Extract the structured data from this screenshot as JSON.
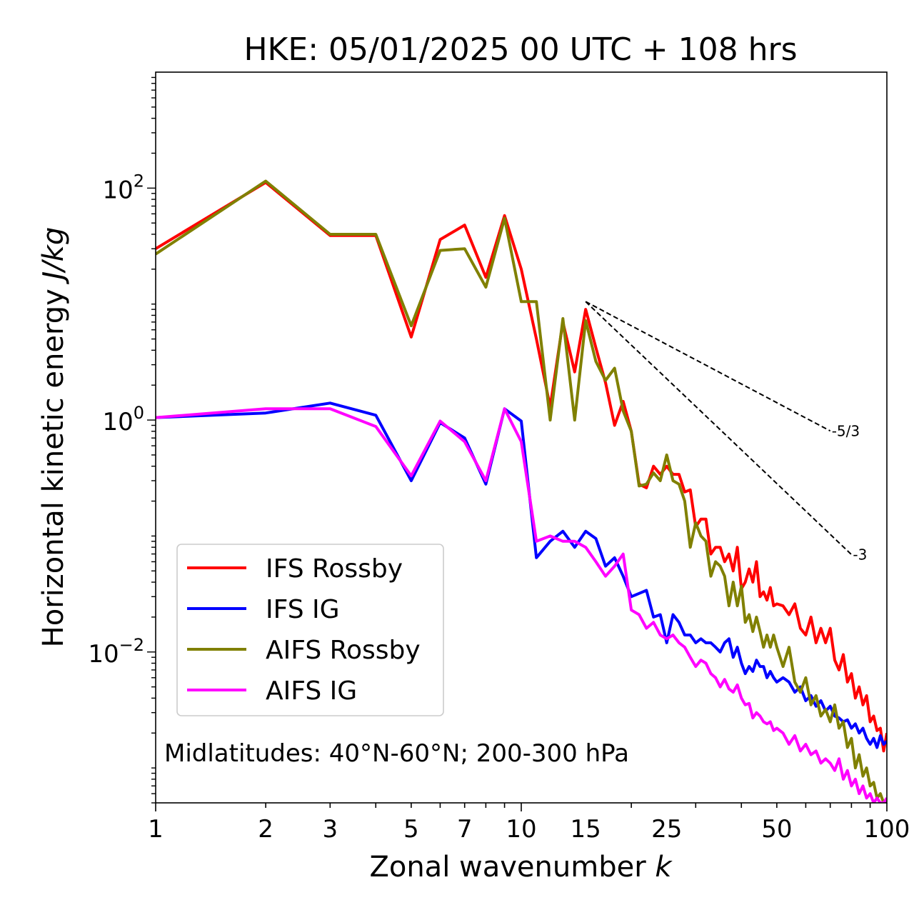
{
  "chart_data": {
    "type": "line",
    "title": "HKE: 05/01/2025 00 UTC + 108 hrs",
    "xlabel": "Zonal wavenumber",
    "xlabel_var": "k",
    "ylabel": "Horizontal kinetic energy",
    "ylabel_units": "J/kg",
    "xscale": "log",
    "yscale": "log",
    "xlim": [
      1,
      100
    ],
    "ylim": [
      0.0005,
      1000
    ],
    "xticks": [
      1,
      2,
      3,
      5,
      7,
      10,
      15,
      25,
      50,
      100
    ],
    "xticklabels": [
      "1",
      "2",
      "3",
      "5",
      "7",
      "10",
      "15",
      "25",
      "50",
      "100"
    ],
    "yticks": [
      {
        "value": 100,
        "base": "10",
        "exp": "2"
      },
      {
        "value": 1,
        "base": "10",
        "exp": "0"
      },
      {
        "value": 0.01,
        "base": "10",
        "exp": "−2"
      }
    ],
    "annotation": "Midlatitudes: 40°N-60°N; 200-300 hPa",
    "legend_position": "lower-left",
    "grid": false,
    "series": [
      {
        "name": "IFS Rossby",
        "color": "#ff0000",
        "points": [
          [
            1,
            30
          ],
          [
            2,
            112
          ],
          [
            3,
            39
          ],
          [
            4,
            39
          ],
          [
            5,
            5.2
          ],
          [
            6,
            36
          ],
          [
            7,
            48
          ],
          [
            8,
            17
          ],
          [
            9,
            58
          ],
          [
            10,
            20
          ],
          [
            11,
            5
          ],
          [
            12,
            1.3
          ],
          [
            13,
            7
          ],
          [
            14,
            2.6
          ],
          [
            15,
            9
          ],
          [
            16,
            4.2
          ],
          [
            17,
            2.1
          ],
          [
            18,
            0.9
          ],
          [
            19,
            1.45
          ],
          [
            20,
            0.8
          ],
          [
            21,
            0.28
          ],
          [
            22,
            0.26
          ],
          [
            23,
            0.4
          ],
          [
            24,
            0.34
          ],
          [
            25,
            0.4
          ],
          [
            26,
            0.34
          ],
          [
            27,
            0.34
          ],
          [
            28,
            0.24
          ],
          [
            29,
            0.25
          ],
          [
            30,
            0.12
          ],
          [
            31,
            0.14
          ],
          [
            32,
            0.14
          ],
          [
            33,
            0.07
          ],
          [
            34,
            0.08
          ],
          [
            35,
            0.08
          ],
          [
            36,
            0.06
          ],
          [
            37,
            0.07
          ],
          [
            38,
            0.05
          ],
          [
            39,
            0.08
          ],
          [
            40,
            0.035
          ],
          [
            41,
            0.04
          ],
          [
            42,
            0.052
          ],
          [
            43,
            0.04
          ],
          [
            44,
            0.06
          ],
          [
            45,
            0.03
          ],
          [
            46,
            0.033
          ],
          [
            47,
            0.028
          ],
          [
            48,
            0.036
          ],
          [
            49,
            0.025
          ],
          [
            50,
            0.026
          ],
          [
            52,
            0.025
          ],
          [
            54,
            0.021
          ],
          [
            56,
            0.026
          ],
          [
            58,
            0.016
          ],
          [
            60,
            0.014
          ],
          [
            62,
            0.02
          ],
          [
            64,
            0.012
          ],
          [
            66,
            0.016
          ],
          [
            68,
            0.012
          ],
          [
            70,
            0.016
          ],
          [
            72,
            0.0085
          ],
          [
            74,
            0.007
          ],
          [
            76,
            0.0095
          ],
          [
            78,
            0.0055
          ],
          [
            80,
            0.0065
          ],
          [
            82,
            0.004
          ],
          [
            84,
            0.005
          ],
          [
            86,
            0.0035
          ],
          [
            88,
            0.0042
          ],
          [
            90,
            0.0025
          ],
          [
            92,
            0.0028
          ],
          [
            94,
            0.0021
          ],
          [
            96,
            0.0022
          ],
          [
            98,
            0.0014
          ],
          [
            100,
            0.002
          ]
        ]
      },
      {
        "name": "IFS IG",
        "color": "#0000ff",
        "points": [
          [
            1,
            1.05
          ],
          [
            2,
            1.15
          ],
          [
            3,
            1.4
          ],
          [
            4,
            1.1
          ],
          [
            5,
            0.3
          ],
          [
            6,
            0.95
          ],
          [
            7,
            0.7
          ],
          [
            8,
            0.28
          ],
          [
            9,
            1.25
          ],
          [
            10,
            0.98
          ],
          [
            11,
            0.065
          ],
          [
            12,
            0.09
          ],
          [
            13,
            0.11
          ],
          [
            14,
            0.08
          ],
          [
            15,
            0.11
          ],
          [
            16,
            0.095
          ],
          [
            17,
            0.055
          ],
          [
            18,
            0.065
          ],
          [
            19,
            0.045
          ],
          [
            20,
            0.03
          ],
          [
            21,
            0.032
          ],
          [
            22,
            0.034
          ],
          [
            23,
            0.02
          ],
          [
            24,
            0.021
          ],
          [
            25,
            0.012
          ],
          [
            26,
            0.021
          ],
          [
            27,
            0.018
          ],
          [
            28,
            0.014
          ],
          [
            29,
            0.014
          ],
          [
            30,
            0.012
          ],
          [
            31,
            0.013
          ],
          [
            32,
            0.012
          ],
          [
            33,
            0.012
          ],
          [
            34,
            0.011
          ],
          [
            35,
            0.01
          ],
          [
            36,
            0.012
          ],
          [
            37,
            0.013
          ],
          [
            38,
            0.009
          ],
          [
            39,
            0.011
          ],
          [
            40,
            0.008
          ],
          [
            41,
            0.0065
          ],
          [
            42,
            0.0075
          ],
          [
            43,
            0.0068
          ],
          [
            44,
            0.0085
          ],
          [
            45,
            0.0075
          ],
          [
            46,
            0.0075
          ],
          [
            47,
            0.006
          ],
          [
            48,
            0.0068
          ],
          [
            49,
            0.006
          ],
          [
            50,
            0.0055
          ],
          [
            52,
            0.006
          ],
          [
            54,
            0.0055
          ],
          [
            56,
            0.0045
          ],
          [
            58,
            0.005
          ],
          [
            60,
            0.0038
          ],
          [
            62,
            0.0042
          ],
          [
            64,
            0.0034
          ],
          [
            66,
            0.0038
          ],
          [
            68,
            0.0031
          ],
          [
            70,
            0.0034
          ],
          [
            72,
            0.0028
          ],
          [
            74,
            0.0027
          ],
          [
            76,
            0.0025
          ],
          [
            78,
            0.0026
          ],
          [
            80,
            0.0022
          ],
          [
            82,
            0.0024
          ],
          [
            84,
            0.002
          ],
          [
            86,
            0.0022
          ],
          [
            88,
            0.0018
          ],
          [
            90,
            0.0016
          ],
          [
            92,
            0.0018
          ],
          [
            94,
            0.0015
          ],
          [
            96,
            0.0019
          ],
          [
            98,
            0.0016
          ],
          [
            100,
            0.0017
          ]
        ]
      },
      {
        "name": "AIFS Rossby",
        "color": "#808000",
        "points": [
          [
            1,
            27
          ],
          [
            2,
            115
          ],
          [
            3,
            40
          ],
          [
            4,
            40
          ],
          [
            5,
            6.5
          ],
          [
            6,
            29
          ],
          [
            7,
            30
          ],
          [
            8,
            14
          ],
          [
            9,
            55
          ],
          [
            10,
            10.5
          ],
          [
            11,
            10.5
          ],
          [
            12,
            1
          ],
          [
            13,
            7.5
          ],
          [
            14,
            1
          ],
          [
            15,
            7.2
          ],
          [
            16,
            3.2
          ],
          [
            17,
            2.2
          ],
          [
            18,
            2.8
          ],
          [
            19,
            1.2
          ],
          [
            20,
            0.8
          ],
          [
            21,
            0.27
          ],
          [
            22,
            0.28
          ],
          [
            23,
            0.35
          ],
          [
            24,
            0.3
          ],
          [
            25,
            0.5
          ],
          [
            26,
            0.3
          ],
          [
            27,
            0.28
          ],
          [
            28,
            0.2
          ],
          [
            29,
            0.08
          ],
          [
            30,
            0.13
          ],
          [
            31,
            0.1
          ],
          [
            32,
            0.09
          ],
          [
            33,
            0.045
          ],
          [
            34,
            0.06
          ],
          [
            35,
            0.055
          ],
          [
            36,
            0.045
          ],
          [
            37,
            0.025
          ],
          [
            38,
            0.04
          ],
          [
            39,
            0.025
          ],
          [
            40,
            0.037
          ],
          [
            41,
            0.018
          ],
          [
            42,
            0.021
          ],
          [
            43,
            0.015
          ],
          [
            44,
            0.02
          ],
          [
            45,
            0.015
          ],
          [
            46,
            0.011
          ],
          [
            47,
            0.014
          ],
          [
            48,
            0.011
          ],
          [
            49,
            0.014
          ],
          [
            50,
            0.011
          ],
          [
            52,
            0.0075
          ],
          [
            54,
            0.011
          ],
          [
            56,
            0.0055
          ],
          [
            58,
            0.0045
          ],
          [
            60,
            0.006
          ],
          [
            62,
            0.0035
          ],
          [
            64,
            0.0042
          ],
          [
            66,
            0.0028
          ],
          [
            68,
            0.0032
          ],
          [
            70,
            0.0025
          ],
          [
            72,
            0.0035
          ],
          [
            74,
            0.0022
          ],
          [
            76,
            0.0025
          ],
          [
            78,
            0.0015
          ],
          [
            80,
            0.0018
          ],
          [
            82,
            0.001
          ],
          [
            84,
            0.0013
          ],
          [
            86,
            0.00085
          ],
          [
            88,
            0.001
          ],
          [
            90,
            0.0007
          ],
          [
            92,
            0.00075
          ],
          [
            94,
            0.00055
          ],
          [
            96,
            0.0006
          ],
          [
            98,
            0.0005
          ],
          [
            100,
            0.0005
          ]
        ]
      },
      {
        "name": "AIFS IG",
        "color": "#ff00ff",
        "points": [
          [
            1,
            1.05
          ],
          [
            2,
            1.25
          ],
          [
            3,
            1.25
          ],
          [
            4,
            0.88
          ],
          [
            5,
            0.33
          ],
          [
            6,
            0.98
          ],
          [
            7,
            0.65
          ],
          [
            8,
            0.3
          ],
          [
            9,
            1.25
          ],
          [
            10,
            0.65
          ],
          [
            11,
            0.09
          ],
          [
            12,
            0.1
          ],
          [
            13,
            0.09
          ],
          [
            14,
            0.09
          ],
          [
            15,
            0.08
          ],
          [
            16,
            0.06
          ],
          [
            17,
            0.045
          ],
          [
            18,
            0.055
          ],
          [
            19,
            0.07
          ],
          [
            20,
            0.023
          ],
          [
            21,
            0.021
          ],
          [
            22,
            0.016
          ],
          [
            23,
            0.018
          ],
          [
            24,
            0.014
          ],
          [
            25,
            0.013
          ],
          [
            26,
            0.014
          ],
          [
            27,
            0.012
          ],
          [
            28,
            0.011
          ],
          [
            29,
            0.009
          ],
          [
            30,
            0.0075
          ],
          [
            31,
            0.0085
          ],
          [
            32,
            0.008
          ],
          [
            33,
            0.0065
          ],
          [
            34,
            0.006
          ],
          [
            35,
            0.005
          ],
          [
            36,
            0.0058
          ],
          [
            37,
            0.0048
          ],
          [
            38,
            0.0045
          ],
          [
            39,
            0.0052
          ],
          [
            40,
            0.004
          ],
          [
            41,
            0.0035
          ],
          [
            42,
            0.0036
          ],
          [
            43,
            0.0027
          ],
          [
            44,
            0.003
          ],
          [
            45,
            0.0028
          ],
          [
            46,
            0.0025
          ],
          [
            47,
            0.0024
          ],
          [
            48,
            0.0025
          ],
          [
            49,
            0.0021
          ],
          [
            50,
            0.0022
          ],
          [
            52,
            0.002
          ],
          [
            54,
            0.0016
          ],
          [
            56,
            0.0019
          ],
          [
            58,
            0.0014
          ],
          [
            60,
            0.0016
          ],
          [
            62,
            0.0013
          ],
          [
            64,
            0.0014
          ],
          [
            66,
            0.0011
          ],
          [
            68,
            0.0012
          ],
          [
            70,
            0.0011
          ],
          [
            72,
            0.00095
          ],
          [
            74,
            0.0012
          ],
          [
            76,
            0.0008
          ],
          [
            78,
            0.00095
          ],
          [
            80,
            0.0007
          ],
          [
            82,
            0.0008
          ],
          [
            84,
            0.0006
          ],
          [
            86,
            0.0007
          ],
          [
            88,
            0.00055
          ],
          [
            90,
            0.0006
          ],
          [
            92,
            0.0005
          ],
          [
            94,
            0.00055
          ],
          [
            96,
            0.0005
          ],
          [
            98,
            0.0005
          ],
          [
            100,
            0.00055
          ]
        ]
      }
    ],
    "reference_slopes": [
      {
        "label": "-5/3",
        "slope": -1.6667,
        "from_k": 15,
        "to_k": 70,
        "start_energy": 10.5
      },
      {
        "label": "-3",
        "slope": -3,
        "from_k": 15,
        "to_k": 80,
        "start_energy": 10.5
      }
    ]
  }
}
